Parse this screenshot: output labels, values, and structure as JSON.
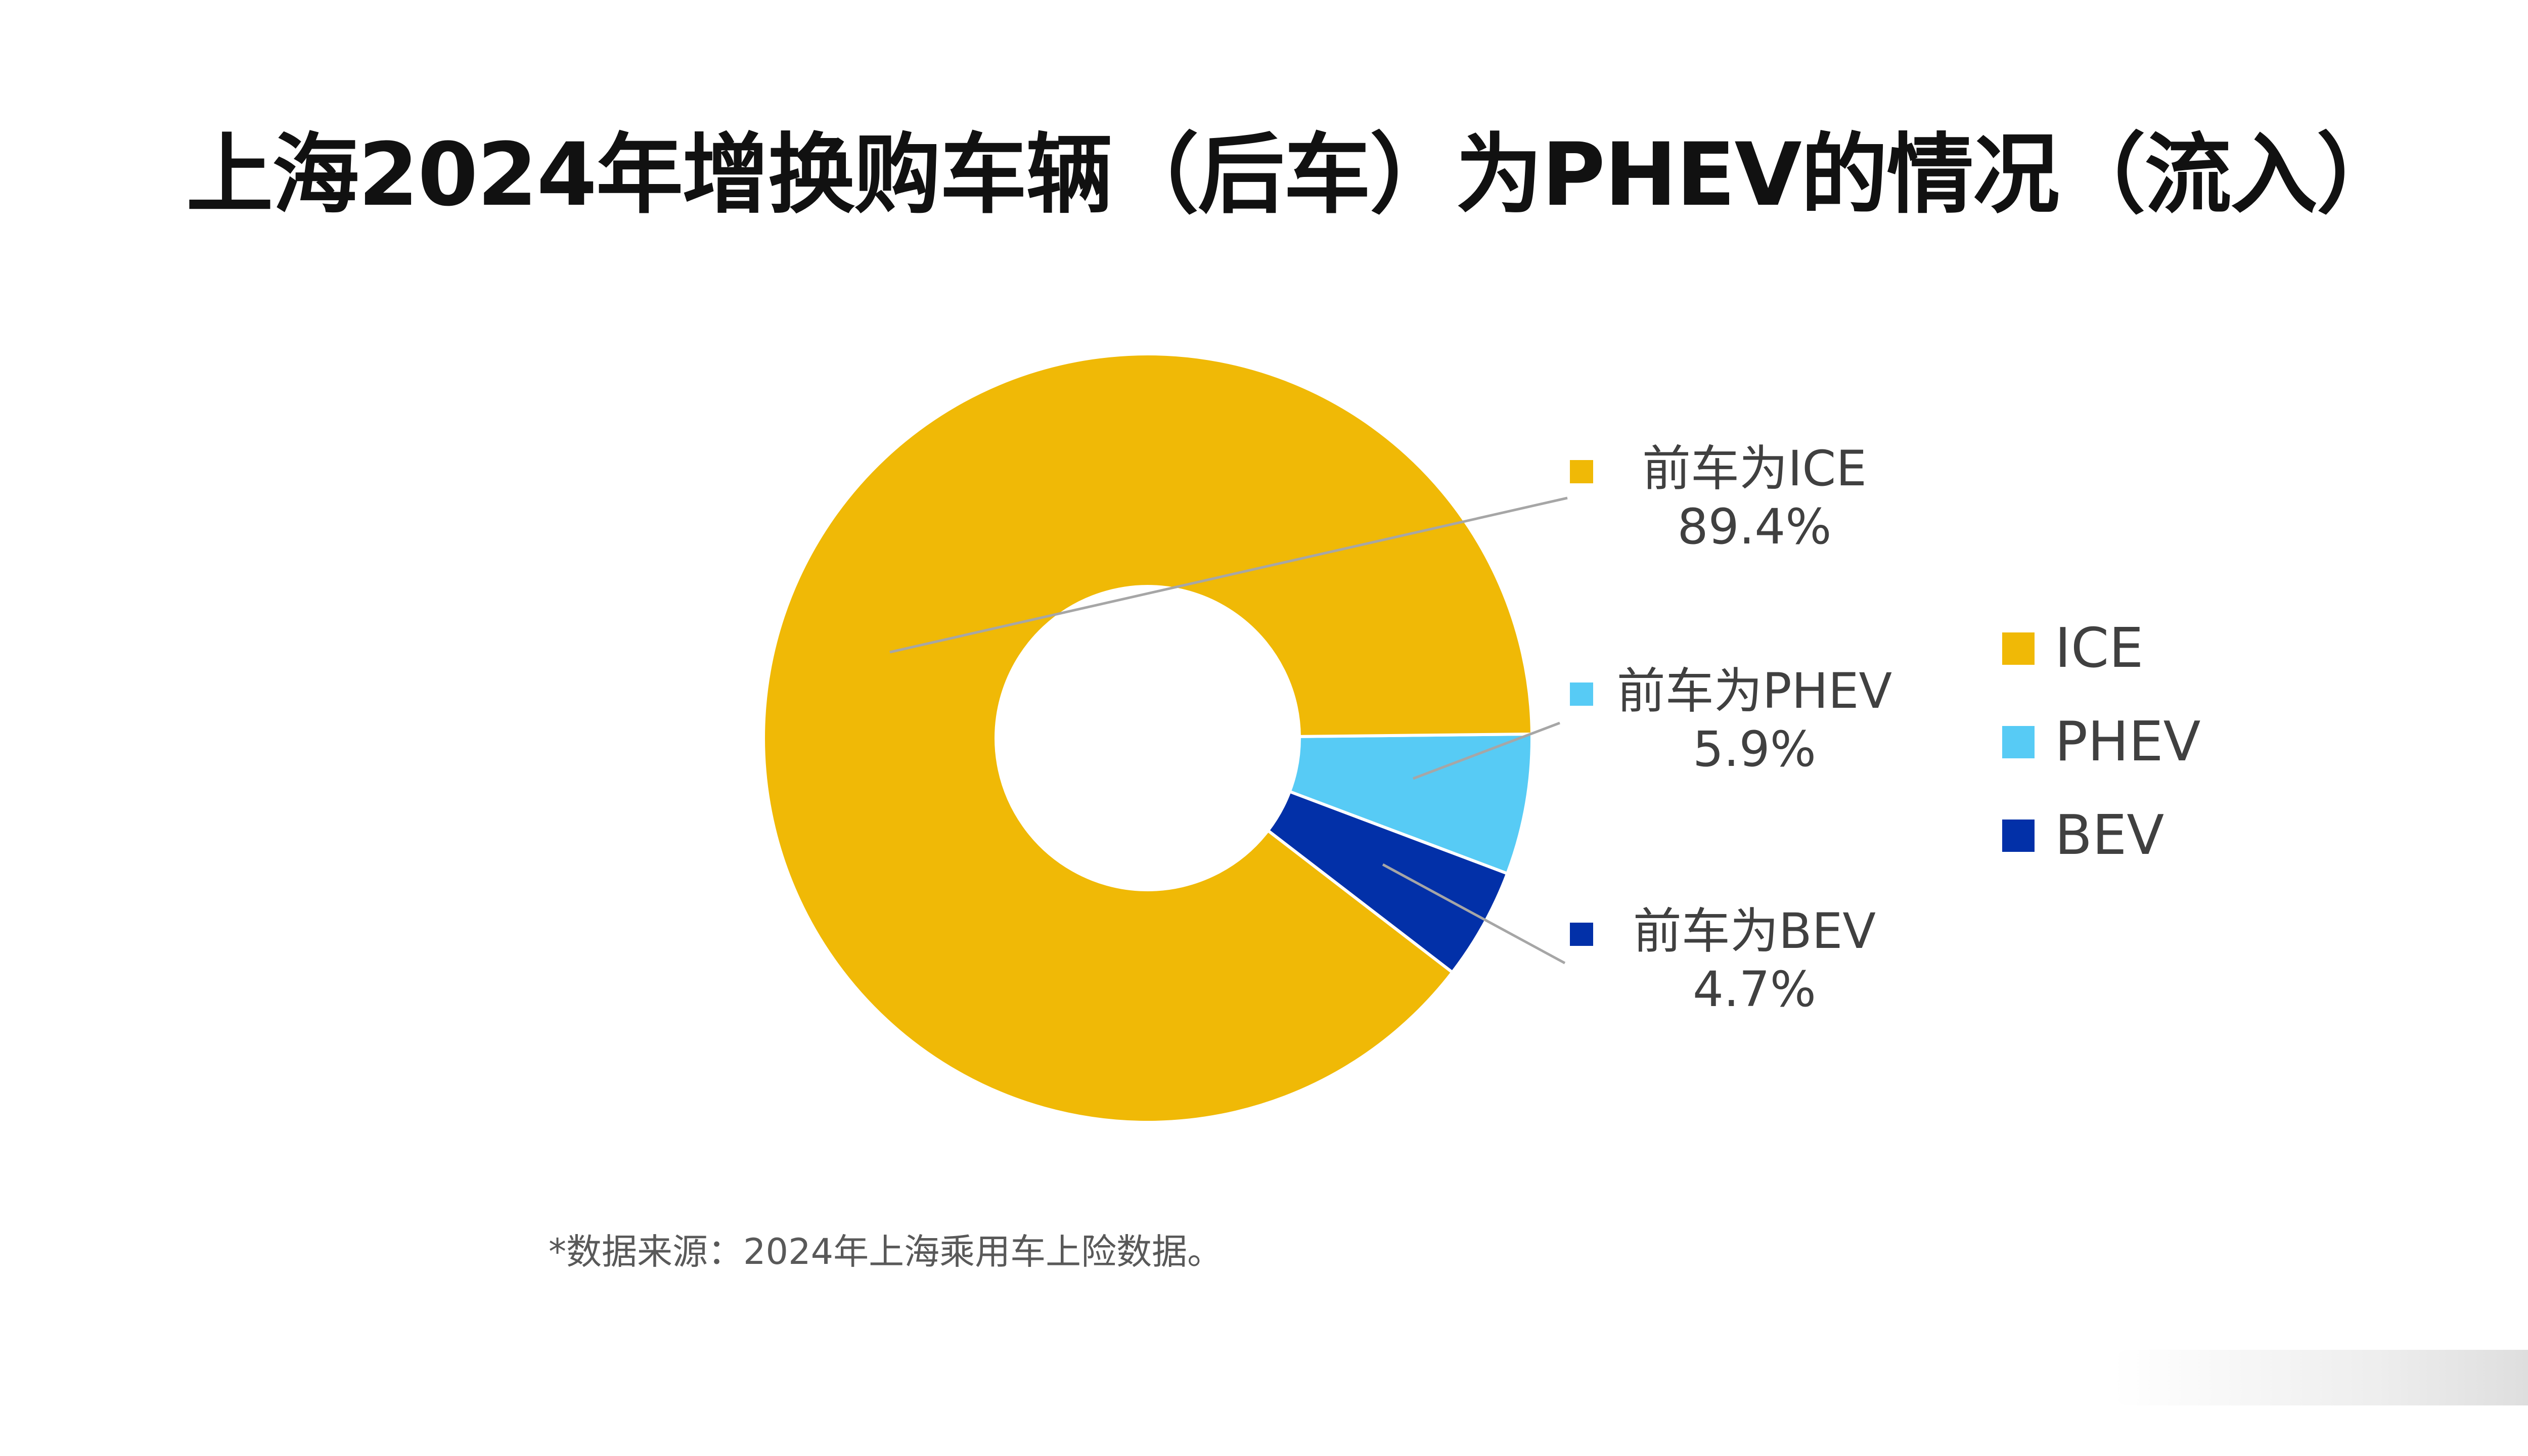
{
  "page": {
    "title": "上海2024年增换购车辆（后车）为PHEV的情况（流入）",
    "source_note": "*数据来源：2024年上海乘用车上险数据。"
  },
  "chart_data": {
    "type": "pie",
    "variant": "donut",
    "title": "上海2024年增换购车辆（后车）为PHEV的情况（流入）",
    "slices": [
      {
        "legend": "ICE",
        "label": "前车为ICE",
        "value": 89.4,
        "value_label": "89.4%",
        "color": "#F0B906"
      },
      {
        "legend": "PHEV",
        "label": "前车为PHEV",
        "value": 5.9,
        "value_label": "5.9%",
        "color": "#57CBF5"
      },
      {
        "legend": "BEV",
        "label": "前车为BEV",
        "value": 4.7,
        "value_label": "4.7%",
        "color": "#0230A8"
      }
    ],
    "legend_position": "right",
    "start_angle": "3 o'clock, clockwise (ICE drawn counter-clockwise from PHEV)"
  },
  "colors": {
    "leader_line": "#A6A6A6",
    "label_text": "#404040",
    "title_text": "#111111"
  }
}
